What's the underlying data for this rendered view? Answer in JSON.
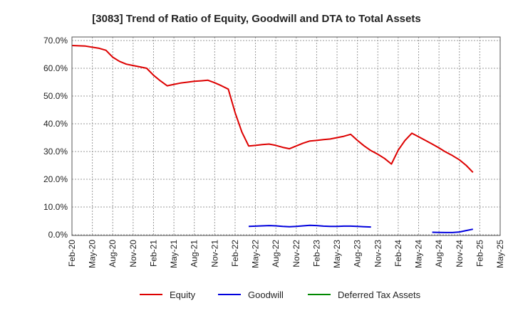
{
  "chart_data": {
    "type": "line",
    "title": "[3083]  Trend of Ratio of Equity, Goodwill and DTA to Total Assets",
    "xlabel": "",
    "ylabel": "",
    "ylim": [
      0,
      70
    ],
    "grid": true,
    "legend_position": "bottom",
    "x_ticks": [
      "Feb-20",
      "May-20",
      "Aug-20",
      "Nov-20",
      "Feb-21",
      "May-21",
      "Aug-21",
      "Nov-21",
      "Feb-22",
      "May-22",
      "Aug-22",
      "Nov-22",
      "Feb-23",
      "May-23",
      "Aug-23",
      "Nov-23",
      "Feb-24",
      "May-24",
      "Aug-24",
      "Nov-24",
      "Feb-25",
      "May-25"
    ],
    "y_ticks": [
      "0.0%",
      "10.0%",
      "20.0%",
      "30.0%",
      "40.0%",
      "50.0%",
      "60.0%",
      "70.0%"
    ],
    "y_tick_values": [
      0,
      10,
      20,
      30,
      40,
      50,
      60,
      70
    ],
    "series": [
      {
        "name": "Equity",
        "color": "#dd0000",
        "points": [
          [
            0,
            68.2
          ],
          [
            1,
            68.1
          ],
          [
            2,
            68.0
          ],
          [
            3,
            67.6
          ],
          [
            4,
            67.2
          ],
          [
            5,
            66.5
          ],
          [
            6,
            64.0
          ],
          [
            7,
            62.5
          ],
          [
            8,
            61.5
          ],
          [
            9,
            61.0
          ],
          [
            10,
            60.5
          ],
          [
            11,
            60.0
          ],
          [
            12,
            57.5
          ],
          [
            13,
            55.5
          ],
          [
            14,
            53.7
          ],
          [
            15,
            54.2
          ],
          [
            16,
            54.7
          ],
          [
            17,
            55.0
          ],
          [
            18,
            55.3
          ],
          [
            19,
            55.5
          ],
          [
            20,
            55.7
          ],
          [
            21,
            54.8
          ],
          [
            22,
            53.7
          ],
          [
            23,
            52.5
          ],
          [
            24,
            44.0
          ],
          [
            25,
            37.0
          ],
          [
            26,
            32.0
          ],
          [
            27,
            32.2
          ],
          [
            28,
            32.5
          ],
          [
            29,
            32.7
          ],
          [
            30,
            32.2
          ],
          [
            31,
            31.5
          ],
          [
            32,
            31.0
          ],
          [
            33,
            32.0
          ],
          [
            34,
            33.0
          ],
          [
            35,
            33.8
          ],
          [
            36,
            34.0
          ],
          [
            37,
            34.3
          ],
          [
            38,
            34.5
          ],
          [
            39,
            35.0
          ],
          [
            40,
            35.5
          ],
          [
            41,
            36.2
          ],
          [
            42,
            34.0
          ],
          [
            43,
            32.0
          ],
          [
            44,
            30.3
          ],
          [
            45,
            29.0
          ],
          [
            46,
            27.5
          ],
          [
            47,
            25.5
          ],
          [
            48,
            30.5
          ],
          [
            49,
            34.0
          ],
          [
            50,
            36.6
          ],
          [
            51,
            35.3
          ],
          [
            52,
            34.0
          ],
          [
            53,
            32.7
          ],
          [
            54,
            31.3
          ],
          [
            55,
            29.8
          ],
          [
            56,
            28.5
          ],
          [
            57,
            27.0
          ],
          [
            58,
            25.0
          ],
          [
            59,
            22.5
          ]
        ]
      },
      {
        "name": "Goodwill",
        "color": "#0000dd",
        "points": [
          [
            26,
            3.0
          ],
          [
            27,
            3.1
          ],
          [
            28,
            3.2
          ],
          [
            29,
            3.3
          ],
          [
            30,
            3.2
          ],
          [
            31,
            3.0
          ],
          [
            32,
            2.9
          ],
          [
            33,
            3.0
          ],
          [
            34,
            3.2
          ],
          [
            35,
            3.4
          ],
          [
            36,
            3.3
          ],
          [
            37,
            3.1
          ],
          [
            38,
            3.0
          ],
          [
            39,
            3.0
          ],
          [
            40,
            3.1
          ],
          [
            41,
            3.1
          ],
          [
            42,
            3.0
          ],
          [
            43,
            2.9
          ],
          [
            44,
            2.8
          ],
          null,
          [
            53,
            0.9
          ],
          [
            54,
            0.85
          ],
          [
            55,
            0.8
          ],
          [
            56,
            0.8
          ],
          [
            57,
            1.0
          ],
          [
            58,
            1.5
          ],
          [
            59,
            2.0
          ]
        ]
      },
      {
        "name": "Deferred Tax Assets",
        "color": "#008800",
        "points": []
      }
    ]
  }
}
